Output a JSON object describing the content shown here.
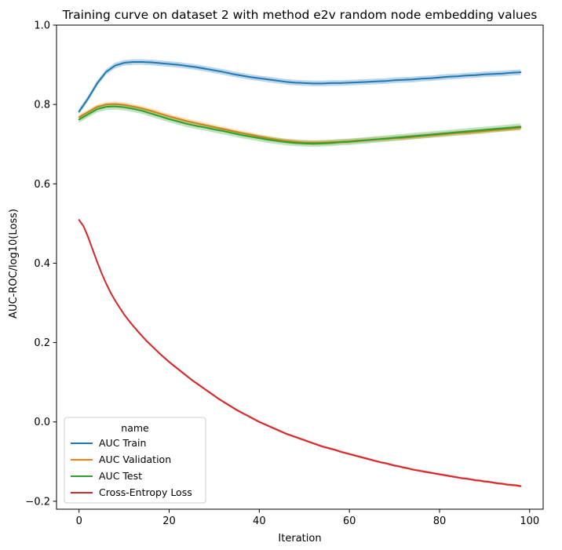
{
  "chart_data": {
    "type": "line",
    "title": "Training curve on dataset 2 with method e2v random node embedding values",
    "xlabel": "Iteration",
    "ylabel": "AUC-ROC/log10(Loss)",
    "xlim": [
      -5,
      103
    ],
    "ylim": [
      -0.22,
      1.0
    ],
    "xticks": [
      0,
      20,
      40,
      60,
      80,
      100
    ],
    "yticks": [
      -0.2,
      0.0,
      0.2,
      0.4,
      0.6,
      0.8,
      1.0
    ],
    "xtick_labels": [
      "0",
      "20",
      "40",
      "60",
      "80",
      "100"
    ],
    "ytick_labels": [
      "−0.2",
      "0.0",
      "0.2",
      "0.4",
      "0.6",
      "0.8",
      "1.0"
    ],
    "grid": false,
    "legend": {
      "title": "name",
      "placement": "lower-left"
    },
    "series": [
      {
        "name": "AUC Train",
        "color": "#1f77b4",
        "band": 0.007,
        "x": [
          0,
          2,
          4,
          6,
          8,
          10,
          12,
          14,
          16,
          18,
          20,
          22,
          24,
          26,
          28,
          30,
          32,
          34,
          36,
          38,
          40,
          42,
          44,
          46,
          48,
          50,
          52,
          54,
          56,
          58,
          60,
          62,
          64,
          66,
          68,
          70,
          72,
          74,
          76,
          78,
          80,
          82,
          84,
          86,
          88,
          90,
          92,
          94,
          96,
          98
        ],
        "y": [
          0.782,
          0.815,
          0.853,
          0.882,
          0.898,
          0.905,
          0.907,
          0.907,
          0.906,
          0.904,
          0.902,
          0.9,
          0.897,
          0.894,
          0.89,
          0.886,
          0.882,
          0.877,
          0.873,
          0.869,
          0.866,
          0.863,
          0.86,
          0.857,
          0.855,
          0.854,
          0.853,
          0.853,
          0.854,
          0.854,
          0.855,
          0.856,
          0.857,
          0.858,
          0.859,
          0.861,
          0.862,
          0.863,
          0.865,
          0.866,
          0.868,
          0.87,
          0.871,
          0.873,
          0.874,
          0.876,
          0.877,
          0.878,
          0.88,
          0.881
        ]
      },
      {
        "name": "AUC Validation",
        "color": "#ff7f0e",
        "band": 0.006,
        "x": [
          0,
          2,
          4,
          6,
          8,
          10,
          12,
          14,
          16,
          18,
          20,
          22,
          24,
          26,
          28,
          30,
          32,
          34,
          36,
          38,
          40,
          42,
          44,
          46,
          48,
          50,
          52,
          54,
          56,
          58,
          60,
          62,
          64,
          66,
          68,
          70,
          72,
          74,
          76,
          78,
          80,
          82,
          84,
          86,
          88,
          90,
          92,
          94,
          96,
          98
        ],
        "y": [
          0.768,
          0.781,
          0.794,
          0.8,
          0.801,
          0.799,
          0.795,
          0.79,
          0.784,
          0.777,
          0.77,
          0.764,
          0.758,
          0.753,
          0.748,
          0.743,
          0.738,
          0.733,
          0.728,
          0.724,
          0.719,
          0.715,
          0.711,
          0.708,
          0.706,
          0.704,
          0.704,
          0.704,
          0.705,
          0.706,
          0.707,
          0.709,
          0.71,
          0.712,
          0.713,
          0.715,
          0.716,
          0.718,
          0.72,
          0.722,
          0.724,
          0.726,
          0.728,
          0.729,
          0.731,
          0.733,
          0.735,
          0.737,
          0.739,
          0.741
        ]
      },
      {
        "name": "AUC Test",
        "color": "#2ca02c",
        "band": 0.008,
        "x": [
          0,
          2,
          4,
          6,
          8,
          10,
          12,
          14,
          16,
          18,
          20,
          22,
          24,
          26,
          28,
          30,
          32,
          34,
          36,
          38,
          40,
          42,
          44,
          46,
          48,
          50,
          52,
          54,
          56,
          58,
          60,
          62,
          64,
          66,
          68,
          70,
          72,
          74,
          76,
          78,
          80,
          82,
          84,
          86,
          88,
          90,
          92,
          94,
          96,
          98
        ],
        "y": [
          0.762,
          0.775,
          0.788,
          0.794,
          0.795,
          0.793,
          0.789,
          0.784,
          0.777,
          0.77,
          0.763,
          0.757,
          0.751,
          0.746,
          0.742,
          0.737,
          0.733,
          0.728,
          0.723,
          0.719,
          0.715,
          0.711,
          0.708,
          0.705,
          0.703,
          0.702,
          0.701,
          0.702,
          0.703,
          0.705,
          0.706,
          0.708,
          0.71,
          0.712,
          0.714,
          0.716,
          0.718,
          0.72,
          0.722,
          0.724,
          0.726,
          0.728,
          0.73,
          0.732,
          0.734,
          0.736,
          0.738,
          0.74,
          0.742,
          0.744
        ]
      },
      {
        "name": "Cross-Entropy Loss",
        "color": "#d62728",
        "band": 0.003,
        "x": [
          0,
          1,
          2,
          3,
          4,
          5,
          6,
          7,
          8,
          9,
          10,
          11,
          12,
          13,
          14,
          15,
          16,
          17,
          18,
          19,
          20,
          21,
          22,
          23,
          24,
          25,
          26,
          27,
          28,
          29,
          30,
          31,
          32,
          33,
          34,
          35,
          36,
          37,
          38,
          39,
          40,
          41,
          42,
          43,
          44,
          45,
          46,
          47,
          48,
          49,
          50,
          51,
          52,
          53,
          54,
          55,
          56,
          57,
          58,
          59,
          60,
          61,
          62,
          63,
          64,
          65,
          66,
          67,
          68,
          69,
          70,
          71,
          72,
          73,
          74,
          75,
          76,
          77,
          78,
          79,
          80,
          81,
          82,
          83,
          84,
          85,
          86,
          87,
          88,
          89,
          90,
          91,
          92,
          93,
          94,
          95,
          96,
          97,
          98
        ],
        "y": [
          0.509,
          0.493,
          0.466,
          0.435,
          0.404,
          0.375,
          0.349,
          0.326,
          0.306,
          0.288,
          0.271,
          0.256,
          0.242,
          0.229,
          0.216,
          0.204,
          0.193,
          0.182,
          0.171,
          0.161,
          0.151,
          0.142,
          0.133,
          0.124,
          0.115,
          0.106,
          0.098,
          0.09,
          0.082,
          0.074,
          0.066,
          0.058,
          0.051,
          0.044,
          0.037,
          0.03,
          0.024,
          0.018,
          0.012,
          0.006,
          0.0,
          -0.005,
          -0.01,
          -0.015,
          -0.02,
          -0.025,
          -0.03,
          -0.034,
          -0.038,
          -0.042,
          -0.046,
          -0.05,
          -0.054,
          -0.058,
          -0.062,
          -0.065,
          -0.068,
          -0.071,
          -0.075,
          -0.078,
          -0.081,
          -0.084,
          -0.087,
          -0.09,
          -0.093,
          -0.096,
          -0.099,
          -0.102,
          -0.104,
          -0.107,
          -0.11,
          -0.112,
          -0.115,
          -0.117,
          -0.12,
          -0.122,
          -0.124,
          -0.126,
          -0.128,
          -0.13,
          -0.132,
          -0.134,
          -0.136,
          -0.138,
          -0.14,
          -0.142,
          -0.143,
          -0.145,
          -0.147,
          -0.148,
          -0.15,
          -0.151,
          -0.153,
          -0.155,
          -0.156,
          -0.158,
          -0.159,
          -0.16,
          -0.162
        ]
      }
    ]
  }
}
